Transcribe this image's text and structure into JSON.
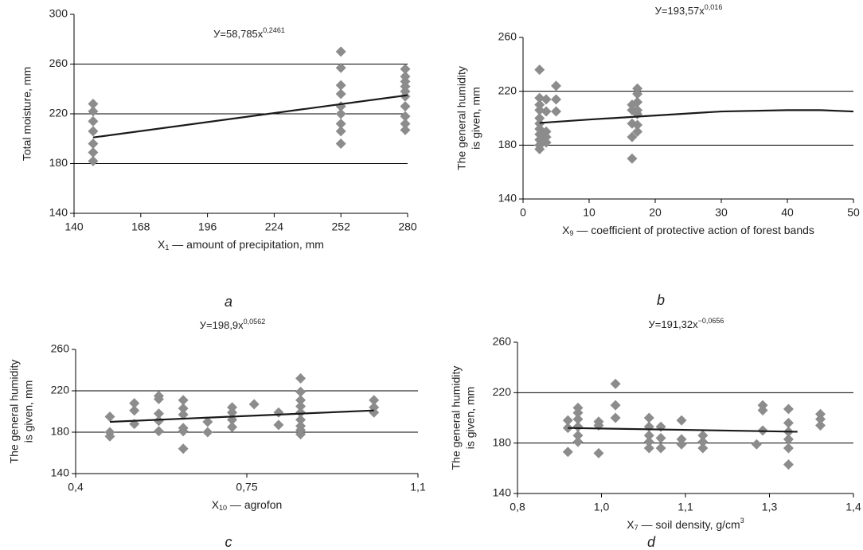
{
  "chart_data": [
    {
      "type": "scatter",
      "panel": "a",
      "equation": {
        "text": "У=58,785x",
        "exponent": "0,2461"
      },
      "x_label": {
        "text": "X",
        "subscript": "1",
        "rest": " — amount of precipitation, mm"
      },
      "y_label": [
        "Total moisture, mm"
      ],
      "x": [
        148,
        148,
        148,
        148,
        148,
        148,
        148,
        252,
        252,
        252,
        252,
        252,
        252,
        252,
        252,
        252,
        279,
        279,
        279,
        279,
        279,
        279,
        279,
        279,
        279,
        279
      ],
      "values": [
        228,
        222,
        214,
        206,
        196,
        189,
        182,
        270,
        257,
        243,
        236,
        226,
        220,
        212,
        206,
        196,
        256,
        250,
        246,
        242,
        238,
        234,
        226,
        218,
        212,
        207
      ],
      "color": "#8c8c8c",
      "trendline": {
        "x": [
          148,
          280
        ],
        "values": [
          201,
          235
        ],
        "color": "#1a1a1a"
      },
      "xlim": [
        140,
        280
      ],
      "xticks": [
        140,
        168,
        196,
        224,
        252,
        280
      ],
      "ylim": [
        140,
        300
      ],
      "yticks": [
        140,
        180,
        220,
        260,
        300
      ],
      "grid": true
    },
    {
      "type": "scatter",
      "panel": "b",
      "equation": {
        "text": "У=193,57x",
        "exponent": "0,016"
      },
      "x_label": {
        "text": "X",
        "subscript": "9",
        "rest": " — coefficient of protective action of forest bands"
      },
      "y_label": [
        "The general humidity",
        "is given, mm"
      ],
      "x": [
        2.5,
        2.5,
        2.5,
        2.5,
        2.5,
        2.5,
        2.5,
        2.5,
        2.5,
        2.5,
        2.5,
        3.5,
        3.5,
        3.5,
        3.5,
        3.5,
        5,
        5,
        5,
        16.5,
        16.5,
        16.5,
        16.5,
        16.5,
        17.3,
        17.3,
        17.3,
        17.3,
        17.3,
        17.3,
        17.3
      ],
      "values": [
        236,
        215,
        210,
        206,
        200,
        196,
        192,
        188,
        184,
        180,
        177,
        190,
        186,
        182,
        205,
        214,
        224,
        214,
        205,
        206,
        196,
        186,
        170,
        210,
        222,
        218,
        212,
        203,
        195,
        190,
        206
      ],
      "color": "#8c8c8c",
      "trendline": {
        "x": [
          2.5,
          10,
          20,
          30,
          40,
          45,
          50
        ],
        "values": [
          196.5,
          199,
          202,
          205,
          206,
          206,
          205
        ],
        "color": "#1a1a1a"
      },
      "xlim": [
        0,
        50
      ],
      "xticks": [
        0,
        10,
        20,
        30,
        40,
        50
      ],
      "ylim": [
        140,
        260
      ],
      "yticks": [
        140,
        180,
        220,
        260
      ],
      "grid": true
    },
    {
      "type": "scatter",
      "panel": "c",
      "equation": {
        "text": "У=198,9x",
        "exponent": "0,0562"
      },
      "x_label": {
        "text": "X",
        "subscript": "10",
        "rest": " — agrofon"
      },
      "y_label": [
        "The general humidity",
        "is given, mm"
      ],
      "x": [
        0.47,
        0.47,
        0.47,
        0.52,
        0.52,
        0.52,
        0.57,
        0.57,
        0.57,
        0.57,
        0.57,
        0.62,
        0.62,
        0.62,
        0.62,
        0.62,
        0.62,
        0.67,
        0.67,
        0.72,
        0.72,
        0.72,
        0.72,
        0.765,
        0.815,
        0.815,
        0.86,
        0.86,
        0.86,
        0.86,
        0.86,
        0.86,
        0.86,
        0.86,
        0.86,
        1.01,
        1.01,
        1.01
      ],
      "values": [
        195,
        180,
        176,
        208,
        201,
        188,
        215,
        212,
        198,
        191,
        181,
        211,
        203,
        197,
        184,
        181,
        164,
        190,
        180,
        204,
        199,
        192,
        185,
        207,
        199,
        187,
        232,
        219,
        211,
        205,
        199,
        192,
        186,
        182,
        178,
        211,
        204,
        199
      ],
      "color": "#8c8c8c",
      "trendline": {
        "x": [
          0.47,
          1.01
        ],
        "values": [
          190,
          201
        ],
        "color": "#1a1a1a"
      },
      "xlim": [
        0.4,
        1.1
      ],
      "xticks": [
        {
          "value": 0.4,
          "label": "0,4"
        },
        {
          "value": 0.75,
          "label": "0,75"
        },
        {
          "value": 1.1,
          "label": "1,1"
        }
      ],
      "ylim": [
        140,
        260
      ],
      "yticks": [
        140,
        180,
        220,
        260
      ],
      "grid": true
    },
    {
      "type": "scatter",
      "panel": "d",
      "equation": {
        "text": "У=191,32x",
        "exponent": "−0,0656"
      },
      "x_label": {
        "text": "X",
        "subscript": "7",
        "rest": " — soil density, g/cm",
        "superscript": "3"
      },
      "y_label": [
        "The general humidity",
        "is given, mm"
      ],
      "x": [
        0.89,
        0.89,
        0.89,
        0.908,
        0.908,
        0.908,
        0.908,
        0.908,
        0.908,
        0.945,
        0.945,
        0.945,
        0.975,
        0.975,
        0.975,
        1.035,
        1.035,
        1.035,
        1.035,
        1.035,
        1.056,
        1.056,
        1.056,
        1.093,
        1.093,
        1.093,
        1.131,
        1.131,
        1.131,
        1.227,
        1.238,
        1.238,
        1.238,
        1.284,
        1.284,
        1.284,
        1.284,
        1.284,
        1.284,
        1.341,
        1.341,
        1.341
      ],
      "values": [
        198,
        192,
        173,
        208,
        204,
        199,
        193,
        186,
        181,
        197,
        194,
        172,
        227,
        210,
        200,
        200,
        193,
        186,
        181,
        176,
        193,
        184,
        176,
        198,
        183,
        179,
        186,
        181,
        176,
        179,
        210,
        206,
        190,
        207,
        196,
        189,
        183,
        176,
        163,
        203,
        199,
        194
      ],
      "color": "#8c8c8c",
      "trendline": {
        "x": [
          0.89,
          1.3
        ],
        "values": [
          192,
          189
        ],
        "color": "#1a1a1a"
      },
      "xlim": [
        0.8,
        1.4
      ],
      "xticks": [
        {
          "value": 0.8,
          "label": "0,8"
        },
        {
          "value": 0.95,
          "label": "1,0"
        },
        {
          "value": 1.1,
          "label": "1,1"
        },
        {
          "value": 1.25,
          "label": "1,3"
        },
        {
          "value": 1.4,
          "label": "1,4"
        }
      ],
      "ylim": [
        140,
        260
      ],
      "yticks": [
        140,
        180,
        220,
        260
      ],
      "grid": true
    }
  ]
}
